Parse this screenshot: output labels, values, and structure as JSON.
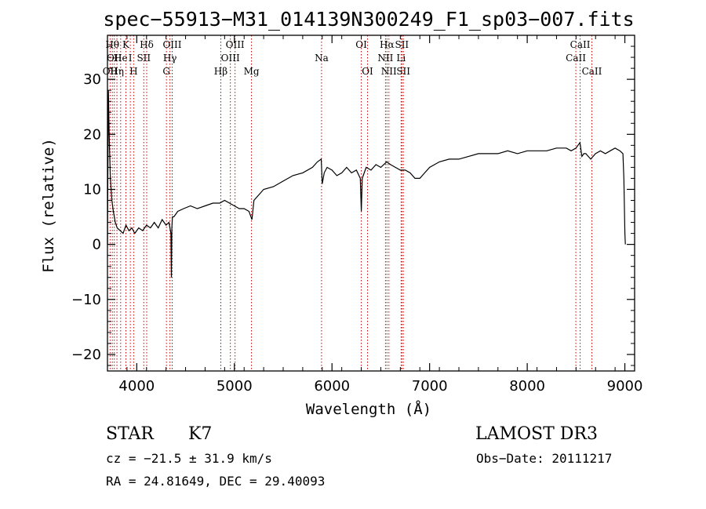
{
  "chart_data": {
    "type": "line",
    "title": "spec−55913−M31_014139N300249_F1_sp03−007.fits",
    "xlabel": "Wavelength (Å)",
    "ylabel": "Flux (relative)",
    "xlim": [
      3700,
      9100
    ],
    "ylim": [
      -23,
      38
    ],
    "xticks": [
      4000,
      5000,
      6000,
      7000,
      8000,
      9000
    ],
    "yticks": [
      -20,
      -10,
      0,
      10,
      20,
      30
    ],
    "xtick_labels": [
      "4000",
      "5000",
      "6000",
      "7000",
      "8000",
      "9000"
    ],
    "ytick_labels": [
      "−20",
      "−10",
      "0",
      "10",
      "20",
      "30"
    ],
    "spectrum": {
      "x": [
        3700,
        3705,
        3710,
        3715,
        3720,
        3730,
        3745,
        3760,
        3780,
        3800,
        3830,
        3860,
        3890,
        3920,
        3950,
        3980,
        4020,
        4060,
        4100,
        4140,
        4180,
        4220,
        4260,
        4300,
        4330,
        4350,
        4355,
        4360,
        4365,
        4380,
        4420,
        4480,
        4550,
        4620,
        4700,
        4780,
        4850,
        4900,
        4950,
        5000,
        5050,
        5100,
        5150,
        5180,
        5200,
        5250,
        5300,
        5400,
        5500,
        5600,
        5700,
        5800,
        5850,
        5890,
        5900,
        5920,
        5950,
        6000,
        6050,
        6100,
        6150,
        6200,
        6250,
        6290,
        6300,
        6310,
        6350,
        6400,
        6450,
        6500,
        6560,
        6600,
        6650,
        6700,
        6750,
        6800,
        6850,
        6900,
        6950,
        7000,
        7050,
        7100,
        7200,
        7300,
        7400,
        7500,
        7600,
        7700,
        7800,
        7900,
        8000,
        8100,
        8200,
        8300,
        8400,
        8450,
        8500,
        8520,
        8540,
        8560,
        8580,
        8600,
        8650,
        8700,
        8750,
        8800,
        8850,
        8900,
        8950,
        8980,
        8990,
        9000,
        9005
      ],
      "y": [
        0,
        15,
        28,
        22,
        18,
        12,
        8,
        6,
        4,
        3,
        2.5,
        2,
        3.5,
        2.5,
        3,
        2,
        3,
        2.5,
        3.5,
        3,
        4,
        3,
        4.5,
        3.5,
        4,
        2,
        -6,
        3,
        5,
        5,
        6,
        6.5,
        7,
        6.5,
        7,
        7.5,
        7.5,
        8,
        7.5,
        7,
        6.5,
        6.5,
        6,
        4.5,
        8,
        9,
        10,
        10.5,
        11.5,
        12.5,
        13,
        14,
        15,
        15.5,
        11,
        13,
        14,
        13.5,
        12.5,
        13,
        14,
        13,
        13.5,
        12,
        6,
        12,
        14,
        13.5,
        14.5,
        14,
        15,
        14.5,
        14,
        13.5,
        13.5,
        13,
        12,
        12,
        13,
        14,
        14.5,
        15,
        15.5,
        15.5,
        16,
        16.5,
        16.5,
        16.5,
        17,
        16.5,
        17,
        17,
        17,
        17.5,
        17.5,
        17,
        17.5,
        18,
        18.5,
        16,
        16.5,
        16.5,
        15.5,
        16.5,
        17,
        16.5,
        17,
        17.5,
        17,
        16.5,
        12,
        2,
        0
      ]
    },
    "spectral_lines": [
      {
        "wavelength": 3727,
        "label": "OII",
        "row": 3
      },
      {
        "wavelength": 3750,
        "label": "Hθ",
        "row": 1
      },
      {
        "wavelength": 3770,
        "label": "OII",
        "row": 2
      },
      {
        "wavelength": 3797,
        "label": "Hη",
        "row": 3
      },
      {
        "wavelength": 3835,
        "label": "He",
        "row": 2
      },
      {
        "wavelength": 3889,
        "label": "K",
        "row": 1
      },
      {
        "wavelength": 3934,
        "label": "I",
        "row": 2
      },
      {
        "wavelength": 3968,
        "label": "H",
        "row": 3
      },
      {
        "wavelength": 4072,
        "label": "SII",
        "row": 2
      },
      {
        "wavelength": 4102,
        "label": "Hδ",
        "row": 1
      },
      {
        "wavelength": 4340,
        "label": "Hγ",
        "row": 2
      },
      {
        "wavelength": 4363,
        "label": "OIII",
        "row": 1
      },
      {
        "wavelength": 4304,
        "label": "G",
        "row": 3
      },
      {
        "wavelength": 4861,
        "label": "Hβ",
        "row": 3
      },
      {
        "wavelength": 4959,
        "label": "OIII",
        "row": 2
      },
      {
        "wavelength": 5007,
        "label": "OIII",
        "row": 1
      },
      {
        "wavelength": 5175,
        "label": "Mg",
        "row": 3
      },
      {
        "wavelength": 5893,
        "label": "Na",
        "row": 2
      },
      {
        "wavelength": 6300,
        "label": "OI",
        "row": 1
      },
      {
        "wavelength": 6364,
        "label": "OI",
        "row": 3
      },
      {
        "wavelength": 6548,
        "label": "NII",
        "row": 2
      },
      {
        "wavelength": 6563,
        "label": "Hα",
        "row": 1
      },
      {
        "wavelength": 6583,
        "label": "NII",
        "row": 3
      },
      {
        "wavelength": 6708,
        "label": "Li",
        "row": 2
      },
      {
        "wavelength": 6716,
        "label": "SII",
        "row": 1
      },
      {
        "wavelength": 6731,
        "label": "SII",
        "row": 3
      },
      {
        "wavelength": 8498,
        "label": "CaII",
        "row": 2
      },
      {
        "wavelength": 8542,
        "label": "CaII",
        "row": 1
      },
      {
        "wavelength": 8662,
        "label": "CaII",
        "row": 3
      }
    ]
  },
  "info": {
    "class": "STAR",
    "subclass": "K7",
    "survey": "LAMOST DR3",
    "cz": "cz = −21.5 ± 31.9 km/s",
    "obs_date": "Obs−Date: 20111217",
    "coords": "RA =  24.81649, DEC =  29.40093"
  },
  "colors": {
    "spectrum": "#000000",
    "line_marker": "#cc0000",
    "axes": "#000000"
  }
}
